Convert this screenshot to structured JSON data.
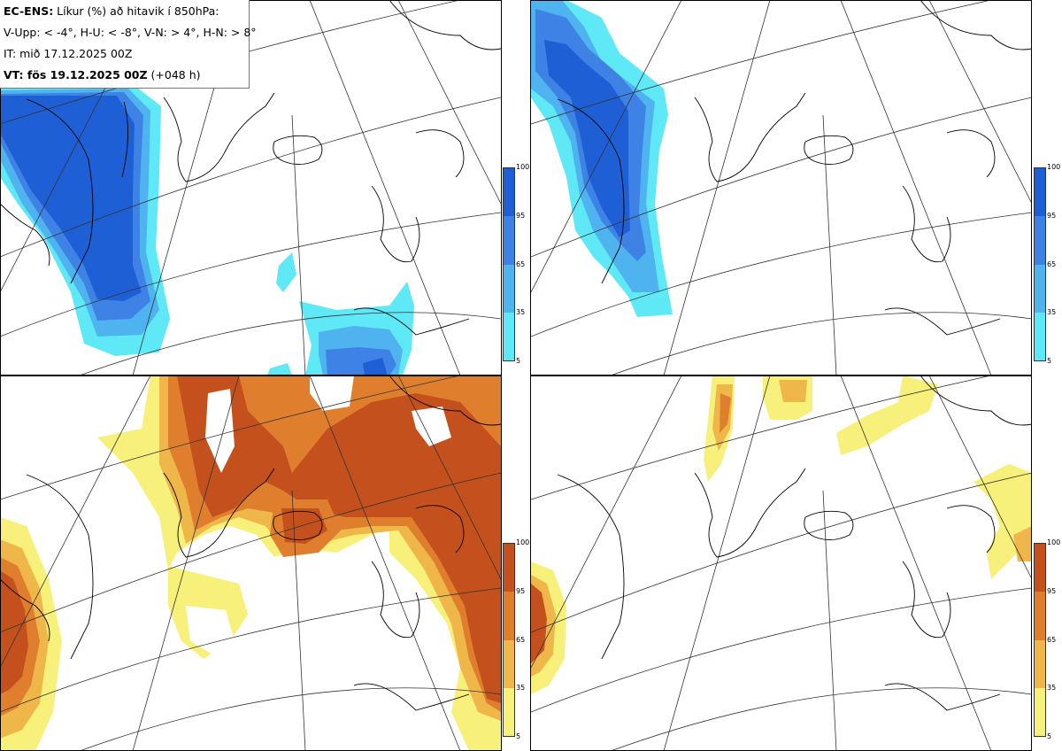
{
  "header": {
    "line1_bold": "EC-ENS:",
    "line1_rest": " Líkur (%) að hitavik í 850hPa:",
    "line2": "V-Upp: < -4°, H-U: < -8°, V-N: > 4°, H-N: > 8°",
    "line3": "IT: mið 17.12.2025 00Z",
    "line4_bold": "VT: fös 19.12.2025 00Z",
    "line4_rest": " (+048 h)"
  },
  "colorbar": {
    "ticks": [
      "100",
      "95",
      "65",
      "35",
      "5"
    ],
    "cold_colors": [
      "#1f5fd6",
      "#3f82e6",
      "#4fb3ef",
      "#5fe8f5"
    ],
    "warm_colors": [
      "#c4501d",
      "#df7f2e",
      "#efb64a",
      "#f7f07b"
    ]
  },
  "panels": [
    {
      "id": "V-Upp",
      "scheme": "cold"
    },
    {
      "id": "H-U",
      "scheme": "cold"
    },
    {
      "id": "V-N",
      "scheme": "warm"
    },
    {
      "id": "H-N",
      "scheme": "warm"
    }
  ]
}
